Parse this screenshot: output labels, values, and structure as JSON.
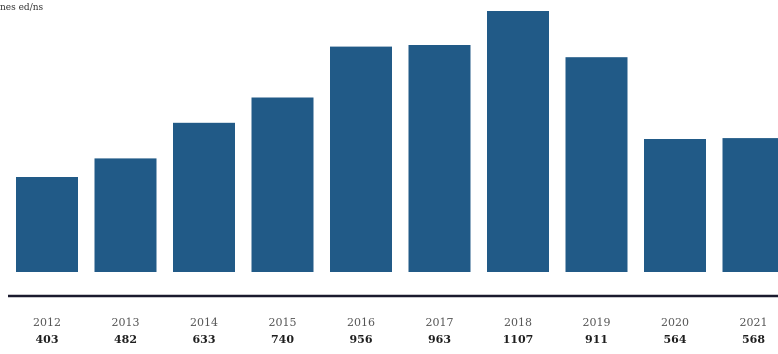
{
  "chart_data": {
    "type": "bar",
    "title": "",
    "corner_text": "nes ed/ns",
    "xlabel": "",
    "ylabel": "",
    "categories": [
      "2012",
      "2013",
      "2014",
      "2015",
      "2016",
      "2017",
      "2018",
      "2019",
      "2020",
      "2021"
    ],
    "values": [
      403,
      482,
      633,
      740,
      956,
      963,
      1107,
      911,
      564,
      568
    ],
    "value_labels": [
      "403",
      "482",
      "633",
      "740",
      "956",
      "963",
      "1107",
      "911",
      "564",
      "568"
    ],
    "ylim": [
      0,
      1107
    ],
    "grid": false,
    "legend": "none",
    "bar_color": "#215a87",
    "axis_color": "#1a1a2e"
  }
}
